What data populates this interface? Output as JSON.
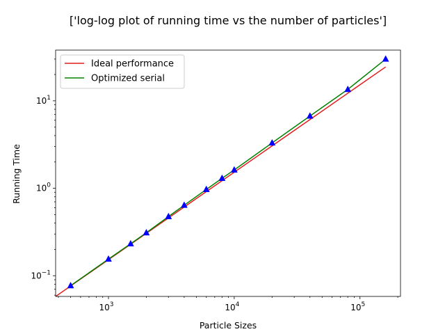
{
  "chart_data": {
    "type": "line",
    "title": "['log-log plot of running time vs the number of particles']",
    "xlabel": "Particle Sizes",
    "ylabel": "Running Time",
    "xscale": "log",
    "yscale": "log",
    "xlim": [
      380,
      210000
    ],
    "ylim": [
      0.058,
      38
    ],
    "grid": false,
    "legend_position": "top-left",
    "x_ticks": [
      {
        "value": 1000,
        "base": "10",
        "exp": "3"
      },
      {
        "value": 10000,
        "base": "10",
        "exp": "4"
      },
      {
        "value": 100000,
        "base": "10",
        "exp": "5"
      }
    ],
    "y_ticks": [
      {
        "value": 0.1,
        "base": "10",
        "exp": "−1"
      },
      {
        "value": 1,
        "base": "10",
        "exp": "0"
      },
      {
        "value": 10,
        "base": "10",
        "exp": "1"
      }
    ],
    "series": [
      {
        "name": "Ideal performance",
        "color": "#e41a1c",
        "x": [
          380,
          160000
        ],
        "y": [
          0.058,
          24.4
        ]
      },
      {
        "name": "Optimized serial",
        "color": "#008000",
        "x": [
          500,
          1000,
          1500,
          2000,
          3000,
          4000,
          6000,
          8000,
          10000,
          20000,
          40000,
          80000,
          160000
        ],
        "y": [
          0.077,
          0.155,
          0.232,
          0.31,
          0.475,
          0.64,
          0.97,
          1.3,
          1.62,
          3.3,
          6.7,
          13.5,
          30.0
        ]
      }
    ],
    "markers": {
      "shape": "triangle-up",
      "color": "#0000ff",
      "x": [
        500,
        1000,
        1500,
        2000,
        3000,
        4000,
        6000,
        8000,
        10000,
        20000,
        40000,
        80000,
        160000
      ],
      "y": [
        0.077,
        0.155,
        0.232,
        0.31,
        0.475,
        0.64,
        0.97,
        1.3,
        1.62,
        3.3,
        6.7,
        13.5,
        30.0
      ]
    }
  }
}
